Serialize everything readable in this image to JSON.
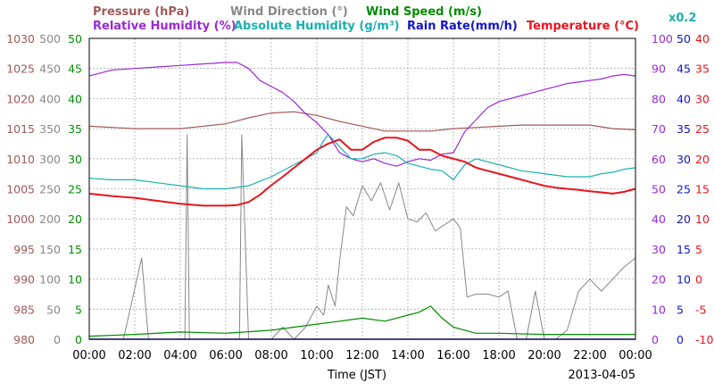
{
  "chart_data": {
    "type": "line",
    "date_label": "2013-04-05",
    "xlabel": "Time (JST)",
    "x_ticks": [
      "00:00",
      "02:00",
      "04:00",
      "06:00",
      "08:00",
      "10:00",
      "12:00",
      "14:00",
      "16:00",
      "18:00",
      "20:00",
      "22:00",
      "00:00"
    ],
    "x_range_hours": [
      0,
      24
    ],
    "grid": true,
    "colors": {
      "pressure": "#a05a5a",
      "wind_direction": "#888888",
      "wind_speed": "#008c00",
      "relative_humidity": "#9a28d8",
      "absolute_humidity": "#1ab0b0",
      "rain_rate": "#1414c8",
      "temperature": "#e8141e",
      "grid": "#aaaaaa"
    },
    "legend": {
      "row1": [
        {
          "key": "pressure",
          "text": "Pressure (hPa)"
        },
        {
          "key": "wind_direction",
          "text": "Wind Direction (°)"
        },
        {
          "key": "wind_speed",
          "text": "Wind Speed (m/s)"
        }
      ],
      "row2": [
        {
          "key": "relative_humidity",
          "text": "Relative Humidity (%)"
        },
        {
          "key": "absolute_humidity",
          "text": "Absolute Humidity (g/m³)"
        },
        {
          "key": "rain_rate",
          "text": "Rain Rate(mm/h)"
        },
        {
          "key": "temperature",
          "text": "Temperature (°C)"
        }
      ],
      "ah_scale": "x0.2"
    },
    "axes": {
      "pressure": {
        "range": [
          980,
          1030
        ],
        "ticks": [
          "1030",
          "1025",
          "1020",
          "1015",
          "1010",
          "1005",
          "1000",
          "995",
          "990",
          "985",
          "980"
        ]
      },
      "wind_direction": {
        "range": [
          0,
          500
        ],
        "ticks": [
          "500",
          "450",
          "400",
          "350",
          "300",
          "250",
          "200",
          "150",
          "100",
          "50",
          "0"
        ]
      },
      "wind_speed": {
        "range": [
          0,
          50
        ],
        "ticks": [
          "50",
          "45",
          "40",
          "35",
          "30",
          "25",
          "20",
          "15",
          "10",
          "5",
          "0"
        ]
      },
      "relative_humidity": {
        "range": [
          0,
          100
        ],
        "ticks": [
          "100",
          "90",
          "80",
          "70",
          "60",
          "50",
          "40",
          "30",
          "20",
          "10",
          "0"
        ]
      },
      "rain_rate": {
        "range": [
          0,
          50
        ],
        "ticks": [
          "50",
          "45",
          "40",
          "35",
          "30",
          "25",
          "20",
          "15",
          "10",
          "5",
          "0"
        ]
      },
      "temperature": {
        "range": [
          -10,
          40
        ],
        "ticks": [
          "40",
          "35",
          "30",
          "25",
          "20",
          "15",
          "10",
          "5",
          "0",
          "-5",
          "-10"
        ]
      }
    },
    "series": [
      {
        "name": "Pressure (hPa)",
        "key": "pressure",
        "axis": "pressure",
        "x": [
          0,
          2,
          4,
          6,
          7,
          8,
          9,
          10,
          11,
          12,
          13,
          14,
          15,
          16,
          17,
          18,
          19,
          20,
          21,
          22,
          23,
          24
        ],
        "y": [
          1015.4,
          1015.0,
          1015.0,
          1015.8,
          1016.8,
          1017.6,
          1017.8,
          1017.2,
          1016.2,
          1015.4,
          1014.6,
          1014.6,
          1014.6,
          1015.0,
          1015.2,
          1015.4,
          1015.6,
          1015.6,
          1015.6,
          1015.6,
          1015.0,
          1014.8
        ]
      },
      {
        "name": "Wind Direction (°)",
        "key": "wind_direction",
        "axis": "wind_direction",
        "x": [
          0,
          1.5,
          2.3,
          2.6,
          3.0,
          4.2,
          4.3,
          4.4,
          5.0,
          6.0,
          6.6,
          6.7,
          7.0,
          7.2,
          7.5,
          8.0,
          8.5,
          9.0,
          9.5,
          10.0,
          10.3,
          10.5,
          10.8,
          11.0,
          11.3,
          11.6,
          12.0,
          12.4,
          12.8,
          13.2,
          13.6,
          14.0,
          14.4,
          14.8,
          15.2,
          15.6,
          16.0,
          16.3,
          16.6,
          17.0,
          17.5,
          18.0,
          18.4,
          18.8,
          19.2,
          19.6,
          20.0,
          20.5,
          21.0,
          21.5,
          22.0,
          22.5,
          23.0,
          23.5,
          24.0
        ],
        "y": [
          0,
          0,
          135,
          0,
          0,
          0,
          340,
          0,
          0,
          0,
          0,
          340,
          0,
          0,
          0,
          0,
          20,
          0,
          20,
          55,
          40,
          90,
          55,
          130,
          220,
          205,
          255,
          230,
          260,
          215,
          260,
          200,
          195,
          210,
          180,
          190,
          200,
          185,
          70,
          75,
          75,
          70,
          80,
          0,
          0,
          80,
          0,
          0,
          15,
          80,
          100,
          80,
          100,
          120,
          135
        ]
      },
      {
        "name": "Wind Speed (m/s)",
        "key": "wind_speed",
        "axis": "wind_speed",
        "x": [
          0,
          2,
          4,
          6,
          8,
          9,
          10,
          11,
          12,
          13,
          14,
          14.5,
          15,
          15.5,
          16,
          16.5,
          17,
          18,
          20,
          22,
          24
        ],
        "y": [
          0.5,
          0.8,
          1.2,
          1.0,
          1.5,
          2.0,
          2.5,
          3.0,
          3.5,
          3.0,
          4.0,
          4.5,
          5.5,
          3.5,
          2.0,
          1.5,
          1.0,
          1.0,
          0.8,
          0.8,
          0.8
        ]
      },
      {
        "name": "Relative Humidity (%)",
        "key": "relative_humidity",
        "axis": "relative_humidity",
        "x": [
          0,
          1,
          2,
          3,
          4,
          5,
          6,
          6.5,
          7.0,
          7.5,
          8.0,
          8.5,
          9.0,
          9.5,
          10.0,
          10.5,
          11.0,
          11.5,
          12.0,
          12.5,
          13.0,
          13.5,
          14.0,
          14.5,
          15.0,
          15.5,
          16.0,
          16.5,
          17.0,
          17.5,
          18.0,
          18.5,
          19.0,
          19.5,
          20.0,
          20.5,
          21.0,
          21.5,
          22.0,
          22.5,
          23.0,
          23.5,
          24.0
        ],
        "y": [
          87.5,
          89.5,
          90.0,
          90.5,
          91.0,
          91.5,
          92.0,
          92.0,
          90.0,
          86.0,
          84.0,
          82.0,
          79.0,
          75.0,
          72.0,
          68.0,
          62.0,
          60.0,
          59.0,
          60.0,
          58.5,
          57.5,
          59.0,
          60.0,
          59.5,
          61.5,
          62.0,
          69.0,
          73.0,
          77.0,
          79.0,
          80.0,
          81.0,
          82.0,
          83.0,
          84.0,
          85.0,
          85.5,
          86.0,
          86.5,
          87.5,
          88.0,
          87.5
        ]
      },
      {
        "name": "Absolute Humidity (g/m³)",
        "key": "absolute_humidity",
        "axis": "relative_humidity",
        "x": [
          0,
          1,
          2,
          3,
          4,
          5,
          6,
          6.5,
          7.0,
          8.0,
          9.0,
          10.0,
          10.3,
          10.5,
          11.0,
          11.5,
          12.0,
          12.5,
          13.0,
          13.5,
          14.0,
          14.5,
          15.0,
          15.5,
          16.0,
          16.5,
          17.0,
          17.5,
          18.0,
          18.5,
          19.0,
          20.0,
          21.0,
          22.0,
          22.5,
          23.0,
          23.5,
          24.0
        ],
        "y": [
          53.5,
          53.0,
          53.0,
          52.0,
          51.0,
          50.0,
          50.0,
          50.5,
          51.0,
          54.0,
          58.0,
          62.0,
          66.0,
          68.0,
          64.0,
          60.0,
          60.0,
          61.5,
          62.0,
          61.0,
          58.5,
          57.5,
          56.5,
          56.0,
          53.0,
          58.0,
          60.0,
          59.0,
          58.0,
          57.0,
          56.0,
          55.0,
          54.0,
          54.0,
          55.0,
          55.5,
          56.5,
          57.0
        ]
      },
      {
        "name": "Rain Rate(mm/h)",
        "key": "rain_rate",
        "axis": "rain_rate",
        "x": [
          0,
          24
        ],
        "y": [
          0,
          0
        ]
      },
      {
        "name": "Temperature (°C)",
        "key": "temperature",
        "axis": "temperature",
        "x": [
          0,
          1,
          2,
          3,
          4,
          5,
          6,
          6.5,
          7.0,
          7.5,
          8.0,
          8.5,
          9.0,
          9.5,
          10.0,
          10.5,
          11.0,
          11.5,
          12.0,
          12.5,
          13.0,
          13.5,
          14.0,
          14.5,
          15.0,
          15.5,
          16.0,
          16.5,
          17.0,
          17.5,
          18.0,
          18.5,
          19.0,
          19.5,
          20.0,
          20.5,
          21.0,
          21.5,
          22.0,
          22.5,
          23.0,
          23.5,
          24.0
        ],
        "y": [
          14.2,
          13.8,
          13.5,
          13.0,
          12.5,
          12.2,
          12.2,
          12.3,
          12.8,
          14.0,
          15.6,
          17.0,
          18.5,
          20.0,
          21.5,
          22.5,
          23.2,
          21.5,
          21.5,
          22.8,
          23.5,
          23.5,
          23.0,
          21.5,
          21.5,
          20.5,
          20.0,
          19.5,
          18.5,
          18.0,
          17.5,
          17.0,
          16.5,
          16.0,
          15.5,
          15.2,
          15.0,
          14.8,
          14.6,
          14.4,
          14.2,
          14.5,
          15.0
        ]
      }
    ]
  }
}
